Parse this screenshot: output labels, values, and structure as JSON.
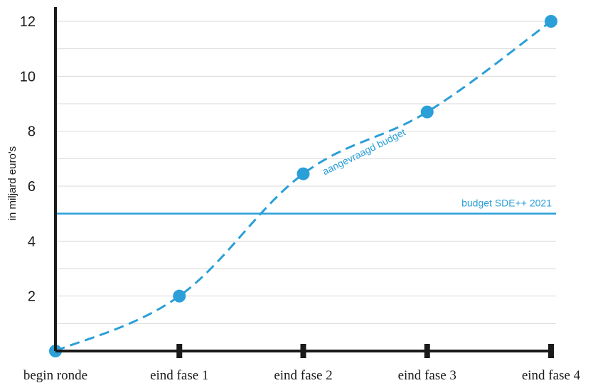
{
  "chart_data": {
    "type": "line",
    "categories": [
      "begin ronde",
      "eind fase 1",
      "eind fase 2",
      "eind fase 3",
      "eind fase 4"
    ],
    "series": [
      {
        "name": "aangevraagd budget",
        "values": [
          0,
          2,
          6.45,
          8.7,
          12
        ]
      }
    ],
    "reference_line": {
      "label": "budget SDE++ 2021",
      "value": 5
    },
    "ylabel": "in miljard euro's",
    "yticks": [
      2,
      4,
      6,
      8,
      10,
      12
    ],
    "ylim": [
      0,
      12.5
    ],
    "grid": true,
    "colors": {
      "series": "#2a9fd8",
      "reference": "#2a9fd8",
      "axis": "#1a1a1a",
      "grid": "#d9d9d9",
      "text": "#1a1a1a"
    }
  }
}
